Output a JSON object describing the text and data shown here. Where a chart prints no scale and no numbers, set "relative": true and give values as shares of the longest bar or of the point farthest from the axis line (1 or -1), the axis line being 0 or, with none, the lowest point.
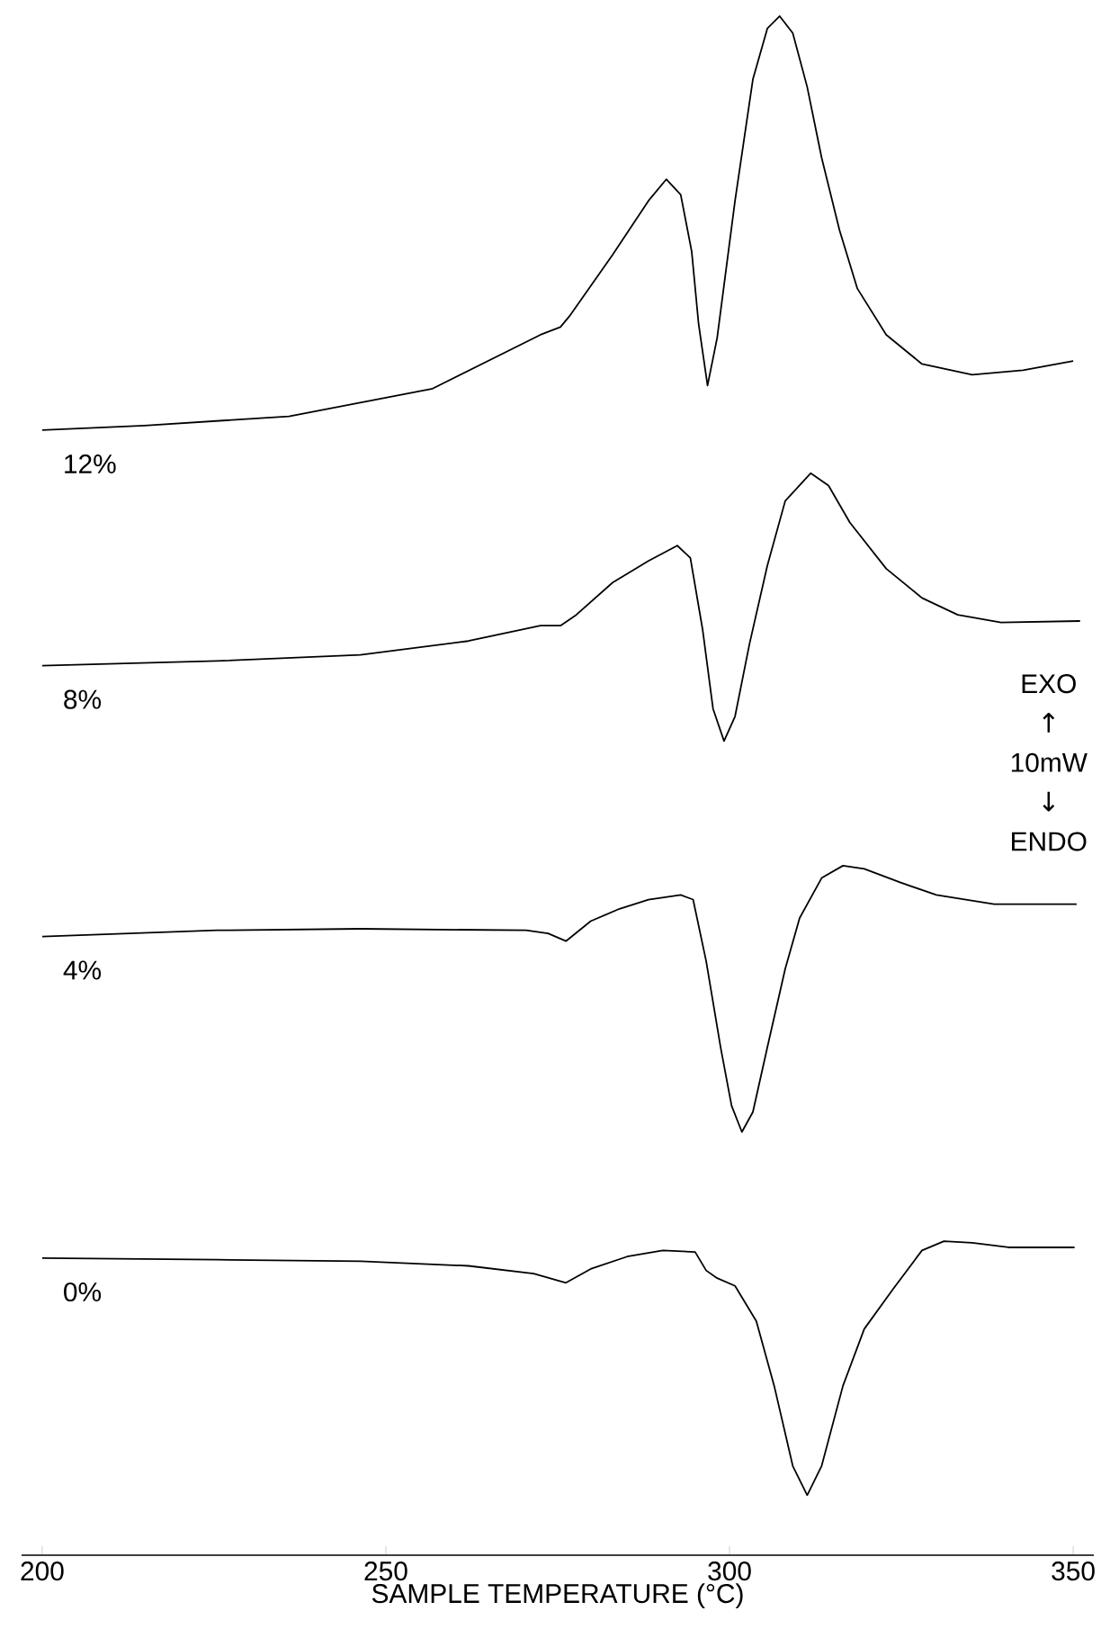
{
  "chart_data": {
    "type": "line",
    "relative": true,
    "marker": "none",
    "xlabel": "SAMPLE TEMPERATURE (°C)",
    "xlim": [
      197,
      353
    ],
    "xticks": [
      200,
      250,
      300,
      350
    ],
    "annotations": [
      "EXO",
      "↑",
      "10mW",
      "↓",
      "ENDO"
    ],
    "series": [
      {
        "name": "12%",
        "color": "#000000",
        "x": [
          200,
          214.9,
          235.9,
          256.8,
          272.5,
          275.4,
          276.7,
          283.0,
          288.2,
          290.8,
          292.9,
          294.5,
          295.5,
          296.8,
          298.2,
          300.8,
          303.4,
          305.5,
          307.3,
          309.2,
          311.3,
          313.4,
          316.0,
          318.6,
          322.8,
          328.0,
          335.3,
          342.7,
          350
        ],
        "values": [
          0.731,
          0.734,
          0.74,
          0.758,
          0.793,
          0.798,
          0.805,
          0.845,
          0.88,
          0.894,
          0.884,
          0.847,
          0.8,
          0.76,
          0.791,
          0.88,
          0.959,
          0.992,
          1.0,
          0.989,
          0.954,
          0.908,
          0.861,
          0.823,
          0.793,
          0.774,
          0.767,
          0.77,
          0.776
        ]
      },
      {
        "name": "8%",
        "color": "#000000",
        "x": [
          200,
          225.4,
          246.3,
          262.0,
          272.5,
          275.4,
          277.7,
          283.0,
          288.2,
          292.4,
          294.3,
          296.1,
          297.6,
          299.2,
          300.8,
          302.9,
          305.5,
          308.1,
          311.8,
          314.4,
          317.5,
          322.8,
          328.0,
          333.2,
          339.5,
          351
        ],
        "values": [
          0.578,
          0.581,
          0.585,
          0.594,
          0.604,
          0.604,
          0.611,
          0.632,
          0.646,
          0.656,
          0.648,
          0.601,
          0.55,
          0.529,
          0.545,
          0.592,
          0.643,
          0.685,
          0.703,
          0.695,
          0.671,
          0.641,
          0.622,
          0.611,
          0.606,
          0.607
        ]
      },
      {
        "name": "4%",
        "color": "#000000",
        "x": [
          200,
          225.4,
          246.3,
          270.4,
          273.6,
          276.2,
          279.8,
          284.0,
          288.2,
          292.9,
          294.7,
          296.6,
          298.7,
          300.3,
          301.8,
          303.4,
          305.5,
          308.1,
          310.2,
          313.4,
          316.5,
          319.6,
          324.9,
          330.1,
          338.5,
          350.5
        ],
        "values": [
          0.402,
          0.406,
          0.407,
          0.406,
          0.404,
          0.399,
          0.412,
          0.42,
          0.426,
          0.429,
          0.426,
          0.386,
          0.33,
          0.292,
          0.275,
          0.288,
          0.33,
          0.381,
          0.414,
          0.44,
          0.448,
          0.446,
          0.437,
          0.429,
          0.423,
          0.423
        ]
      },
      {
        "name": "0%",
        "color": "#000000",
        "x": [
          200,
          225.4,
          246.3,
          262.0,
          271.5,
          276.2,
          279.8,
          285.1,
          290.3,
          295.0,
          296.6,
          298.2,
          300.8,
          303.9,
          306.5,
          309.2,
          311.3,
          313.4,
          316.5,
          319.6,
          323.8,
          328.0,
          331.2,
          335.3,
          340.6,
          350.2
        ],
        "values": [
          0.193,
          0.192,
          0.191,
          0.188,
          0.183,
          0.177,
          0.186,
          0.194,
          0.198,
          0.197,
          0.185,
          0.18,
          0.175,
          0.152,
          0.11,
          0.058,
          0.039,
          0.058,
          0.11,
          0.147,
          0.173,
          0.198,
          0.204,
          0.203,
          0.2,
          0.2
        ]
      }
    ]
  }
}
